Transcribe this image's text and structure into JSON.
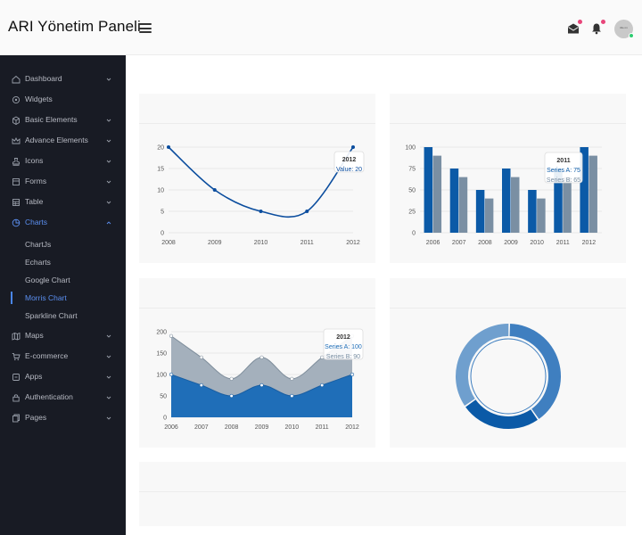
{
  "header": {
    "brand": "ARI Yönetim Paneli",
    "notification_dot_color": "#e8457a",
    "online_color": "#2ecc71",
    "avatar_text": "title.im"
  },
  "sidebar": {
    "items": [
      {
        "label": "Dashboard",
        "icon": "home-icon",
        "chevron": "down"
      },
      {
        "label": "Widgets",
        "icon": "widgets-icon",
        "chevron": null
      },
      {
        "label": "Basic Elements",
        "icon": "box-icon",
        "chevron": "down"
      },
      {
        "label": "Advance Elements",
        "icon": "crown-icon",
        "chevron": "down"
      },
      {
        "label": "Icons",
        "icon": "stamp-icon",
        "chevron": "down"
      },
      {
        "label": "Forms",
        "icon": "form-icon",
        "chevron": "down"
      },
      {
        "label": "Table",
        "icon": "table-icon",
        "chevron": "down"
      },
      {
        "label": "Charts",
        "icon": "pie-chart-icon",
        "chevron": "up",
        "active": true
      },
      {
        "label": "Maps",
        "icon": "map-icon",
        "chevron": "down"
      },
      {
        "label": "E-commerce",
        "icon": "cart-icon",
        "chevron": "down"
      },
      {
        "label": "Apps",
        "icon": "apps-icon",
        "chevron": "down"
      },
      {
        "label": "Authentication",
        "icon": "lock-icon",
        "chevron": "down"
      },
      {
        "label": "Pages",
        "icon": "pages-icon",
        "chevron": "down"
      }
    ],
    "chart_subitems": [
      {
        "label": "ChartJs"
      },
      {
        "label": "Echarts"
      },
      {
        "label": "Google Chart"
      },
      {
        "label": "Morris Chart",
        "active": true
      },
      {
        "label": "Sparkline Chart"
      }
    ],
    "active_color": "#5b8ff0"
  },
  "chart_data": [
    {
      "type": "line",
      "x": [
        "2008",
        "2009",
        "2010",
        "2011",
        "2012"
      ],
      "series": [
        {
          "values": [
            20,
            10,
            5,
            5,
            20
          ]
        }
      ],
      "yticks": [
        0,
        5,
        10,
        15,
        20
      ],
      "ylim": [
        0,
        20
      ],
      "color": "#0b4d9e",
      "tooltip": {
        "title": "2012",
        "line1": "Value: 20"
      }
    },
    {
      "type": "bar",
      "categories": [
        "2006",
        "2007",
        "2008",
        "2009",
        "2010",
        "2011",
        "2012"
      ],
      "series": [
        {
          "values": [
            100,
            75,
            50,
            75,
            50,
            75,
            100
          ],
          "color": "#0b5aa7"
        },
        {
          "values": [
            90,
            65,
            40,
            65,
            40,
            65,
            90
          ],
          "color": "#7a8fa3"
        }
      ],
      "yticks": [
        0,
        25,
        50,
        75,
        100
      ],
      "ylim": [
        0,
        100
      ],
      "tooltip": {
        "title": "2011",
        "line1": "Series A: 75",
        "line2": "Series B: 65"
      }
    },
    {
      "type": "area",
      "x": [
        "2006",
        "2007",
        "2008",
        "2009",
        "2010",
        "2011",
        "2012"
      ],
      "series": [
        {
          "values": [
            100,
            75,
            50,
            75,
            50,
            75,
            100
          ],
          "color": "#1f6eb8"
        },
        {
          "values": [
            90,
            65,
            40,
            65,
            40,
            65,
            90
          ],
          "color": "#a4b0bc"
        }
      ],
      "stacked": true,
      "yticks": [
        0,
        50,
        100,
        150,
        200
      ],
      "ylim": [
        0,
        200
      ],
      "tooltip": {
        "title": "2012",
        "line1": "Series A: 100",
        "line2": "Series B: 90"
      }
    },
    {
      "type": "pie",
      "donut": true,
      "values": [
        40,
        25,
        35
      ],
      "colors": [
        "#3f7fc0",
        "#0b5aa7",
        "#6f9fce"
      ]
    }
  ]
}
